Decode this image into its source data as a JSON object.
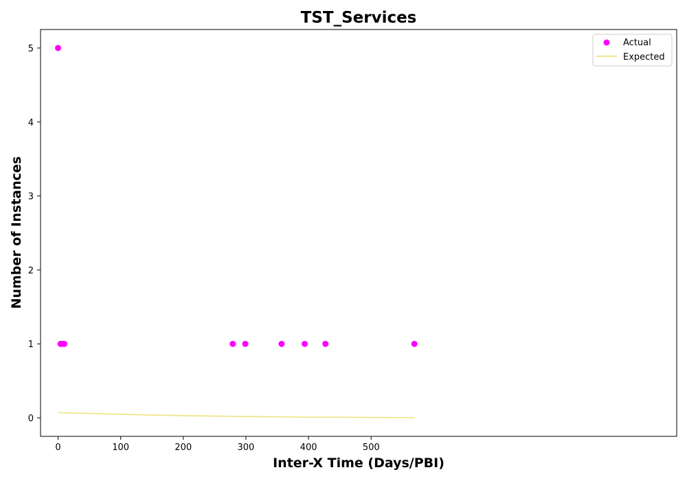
{
  "chart_data": {
    "type": "scatter",
    "title": "TST_Services",
    "xlabel": "Inter-X Time (Days/PBI)",
    "ylabel": "Number of Instances",
    "xlim": [
      -28,
      988
    ],
    "ylim": [
      -0.25,
      5.25
    ],
    "xticks": [
      0,
      100,
      200,
      300,
      400,
      500
    ],
    "yticks": [
      0,
      1,
      2,
      3,
      4,
      5
    ],
    "grid": false,
    "legend_position": "top-right",
    "series": [
      {
        "name": "Actual",
        "kind": "scatter",
        "color": "#ff00ff",
        "points": [
          {
            "x": 0,
            "y": 5
          },
          {
            "x": 4,
            "y": 1
          },
          {
            "x": 7,
            "y": 1
          },
          {
            "x": 10,
            "y": 1
          },
          {
            "x": 279,
            "y": 1
          },
          {
            "x": 299,
            "y": 1
          },
          {
            "x": 357,
            "y": 1
          },
          {
            "x": 394,
            "y": 1
          },
          {
            "x": 427,
            "y": 1
          },
          {
            "x": 569,
            "y": 1
          }
        ]
      },
      {
        "name": "Expected",
        "kind": "line",
        "color": "#f0e68c",
        "points": [
          {
            "x": 0,
            "y": 0.07
          },
          {
            "x": 50,
            "y": 0.06
          },
          {
            "x": 100,
            "y": 0.048
          },
          {
            "x": 150,
            "y": 0.038
          },
          {
            "x": 200,
            "y": 0.03
          },
          {
            "x": 250,
            "y": 0.024
          },
          {
            "x": 300,
            "y": 0.018
          },
          {
            "x": 350,
            "y": 0.014
          },
          {
            "x": 400,
            "y": 0.01
          },
          {
            "x": 450,
            "y": 0.008
          },
          {
            "x": 500,
            "y": 0.005
          },
          {
            "x": 570,
            "y": 0.003
          }
        ]
      }
    ]
  }
}
